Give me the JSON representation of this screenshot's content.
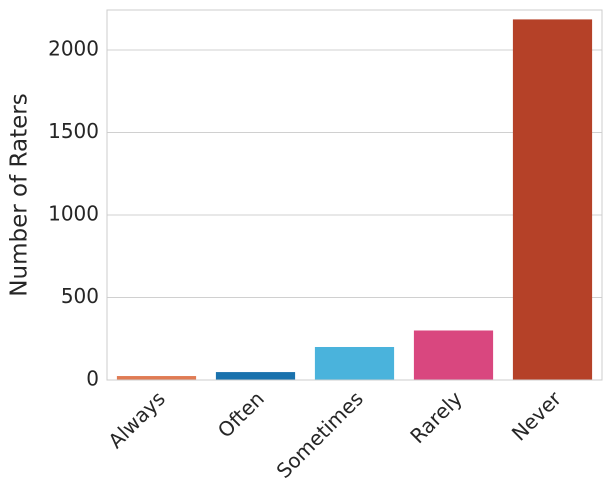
{
  "chart_data": {
    "type": "bar",
    "y_label": "Number of Raters",
    "categories": [
      "Always",
      "Often",
      "Sometimes",
      "Rarely",
      "Never"
    ],
    "values": [
      24,
      48,
      200,
      300,
      2185
    ],
    "colors": [
      "#e07b54",
      "#1a72ad",
      "#4ab3dc",
      "#d9477f",
      "#b54128"
    ],
    "ylim": [
      0,
      2242
    ],
    "yticks": [
      0,
      500,
      1000,
      1500,
      2000
    ],
    "grid": true
  }
}
